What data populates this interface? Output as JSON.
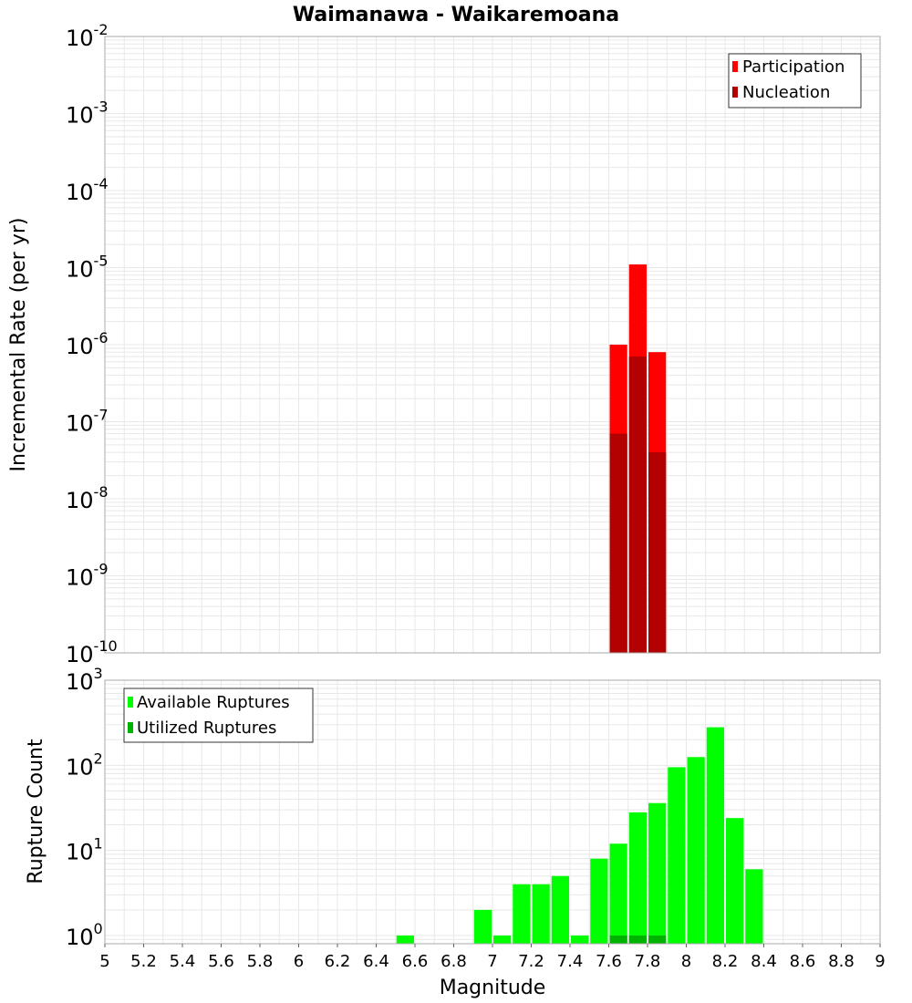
{
  "title": "Waimanawa - Waikaremoana",
  "colors": {
    "participation": "#ff0000",
    "nucleation": "#b30000",
    "available": "#00ff00",
    "utilized": "#00b300",
    "grid": "#e8e8e8",
    "border": "#a8a8a8"
  },
  "chart_data": [
    {
      "type": "bar",
      "name": "rate-chart",
      "title": "Waimanawa - Waikaremoana",
      "xlabel": "Magnitude",
      "ylabel": "Incremental Rate (per yr)",
      "yscale": "log",
      "xlim": [
        5,
        9
      ],
      "ylim": [
        1e-10,
        0.01
      ],
      "yticks": [
        {
          "base": "10",
          "exp": "-10"
        },
        {
          "base": "10",
          "exp": "-9"
        },
        {
          "base": "10",
          "exp": "-8"
        },
        {
          "base": "10",
          "exp": "-7"
        },
        {
          "base": "10",
          "exp": "-6"
        },
        {
          "base": "10",
          "exp": "-5"
        },
        {
          "base": "10",
          "exp": "-4"
        },
        {
          "base": "10",
          "exp": "-3"
        },
        {
          "base": "10",
          "exp": "-2"
        }
      ],
      "legend": {
        "position": "top-right",
        "entries": [
          "Participation",
          "Nucleation"
        ]
      },
      "series": [
        {
          "name": "Participation",
          "x": [
            7.65,
            7.75,
            7.85
          ],
          "values": [
            1e-06,
            1.1e-05,
            8e-07
          ]
        },
        {
          "name": "Nucleation",
          "x": [
            7.65,
            7.75,
            7.85
          ],
          "values": [
            7e-08,
            7e-07,
            4e-08
          ]
        }
      ]
    },
    {
      "type": "bar",
      "name": "count-chart",
      "xlabel": "Magnitude",
      "ylabel": "Rupture Count",
      "yscale": "log",
      "xlim": [
        5,
        9
      ],
      "ylim": [
        0.8,
        1000
      ],
      "xticks": [
        "5",
        "5.2",
        "5.4",
        "5.6",
        "5.8",
        "6",
        "6.2",
        "6.4",
        "6.6",
        "6.8",
        "7",
        "7.2",
        "7.4",
        "7.6",
        "7.8",
        "8",
        "8.2",
        "8.4",
        "8.6",
        "8.8",
        "9"
      ],
      "yticks": [
        {
          "base": "10",
          "exp": "0"
        },
        {
          "base": "10",
          "exp": "1"
        },
        {
          "base": "10",
          "exp": "2"
        },
        {
          "base": "10",
          "exp": "3"
        }
      ],
      "legend": {
        "position": "top-left",
        "entries": [
          "Available Ruptures",
          "Utilized Ruptures"
        ]
      },
      "series": [
        {
          "name": "Available Ruptures",
          "x": [
            6.55,
            6.95,
            7.05,
            7.15,
            7.25,
            7.35,
            7.45,
            7.55,
            7.65,
            7.75,
            7.85,
            7.95,
            8.05,
            8.15,
            8.25,
            8.35
          ],
          "values": [
            1,
            2,
            1,
            4,
            4,
            5,
            1,
            8,
            12,
            28,
            36,
            95,
            125,
            280,
            24,
            6
          ]
        },
        {
          "name": "Utilized Ruptures",
          "x": [
            7.65,
            7.75,
            7.85
          ],
          "values": [
            1,
            1,
            1
          ]
        }
      ]
    }
  ]
}
